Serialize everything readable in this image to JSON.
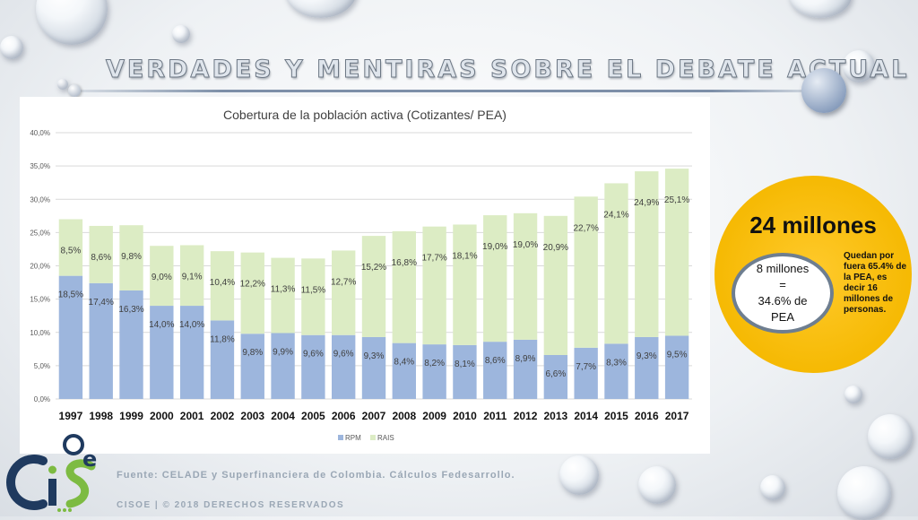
{
  "slide": {
    "banner_title": "VERDADES Y MENTIRAS SOBRE EL DEBATE ACTUAL",
    "source_text": "Fuente: CELADE y Superfinanciera de Colombia. Cálculos Fedesarrollo.",
    "copyright_text": "CISOE   |   © 2018 DERECHOS RESERVADOS",
    "logo_text": "CISOE"
  },
  "callout": {
    "headline": "24 millones",
    "oval_line1": "8 millones",
    "oval_line2": "=",
    "oval_line3": "34.6% de",
    "oval_line4": "PEA",
    "note": "Quedan por fuera 65.4% de la PEA, es decir 16 millones de personas."
  },
  "colors": {
    "rpm": "#9db6dd",
    "rais": "#dcecc4",
    "callout": "#f5b800"
  },
  "chart_data": {
    "type": "bar",
    "stacked": true,
    "title": "Cobertura de la población activa (Cotizantes/ PEA)",
    "categories": [
      "1997",
      "1998",
      "1999",
      "2000",
      "2001",
      "2002",
      "2003",
      "2004",
      "2005",
      "2006",
      "2007",
      "2008",
      "2009",
      "2010",
      "2011",
      "2012",
      "2013",
      "2014",
      "2015",
      "2016",
      "2017"
    ],
    "series": [
      {
        "name": "RPM",
        "values": [
          18.5,
          17.4,
          16.3,
          14.0,
          14.0,
          11.8,
          9.8,
          9.9,
          9.6,
          9.6,
          9.3,
          8.4,
          8.2,
          8.1,
          8.6,
          8.9,
          6.6,
          7.7,
          8.3,
          9.3,
          9.5
        ],
        "labels": [
          "18,5%",
          "17,4%",
          "16,3%",
          "14,0%",
          "14,0%",
          "11,8%",
          "9,8%",
          "9,9%",
          "9,6%",
          "9,6%",
          "9,3%",
          "8,4%",
          "8,2%",
          "8,1%",
          "8,6%",
          "8,9%",
          "6,6%",
          "7,7%",
          "8,3%",
          "9,3%",
          "9,5%"
        ]
      },
      {
        "name": "RAIS",
        "values": [
          8.5,
          8.6,
          9.8,
          9.0,
          9.1,
          10.4,
          12.2,
          11.3,
          11.5,
          12.7,
          15.2,
          16.8,
          17.7,
          18.1,
          19.0,
          19.0,
          20.9,
          22.7,
          24.1,
          24.9,
          25.1
        ],
        "labels": [
          "8,5%",
          "8,6%",
          "9,8%",
          "9,0%",
          "9,1%",
          "10,4%",
          "12,2%",
          "11,3%",
          "11,5%",
          "12,7%",
          "15,2%",
          "16,8%",
          "17,7%",
          "18,1%",
          "19,0%",
          "19,0%",
          "20,9%",
          "22,7%",
          "24,1%",
          "24,9%",
          "25,1%"
        ]
      }
    ],
    "ylim": [
      0,
      40
    ],
    "yticks": [
      "0,0%",
      "5,0%",
      "10,0%",
      "15,0%",
      "20,0%",
      "25,0%",
      "30,0%",
      "35,0%",
      "40,0%"
    ],
    "grid": true,
    "legend": "bottom-center"
  }
}
